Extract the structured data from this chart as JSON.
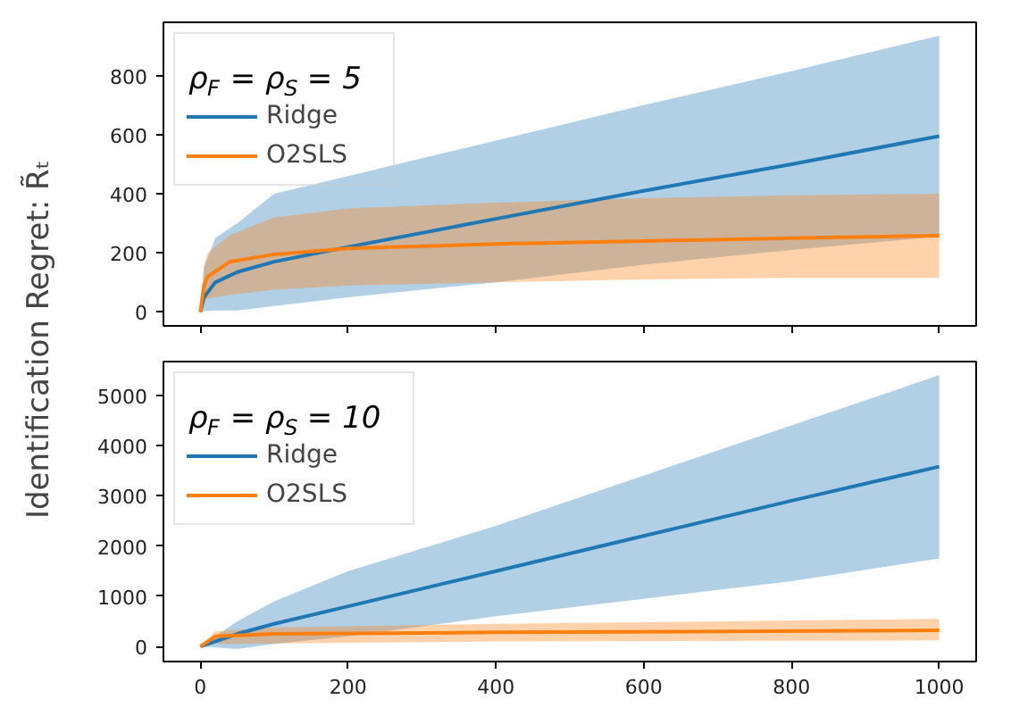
{
  "chart_data": [
    {
      "type": "line",
      "ylabel": "Identification Regret: R̃ₜ",
      "legend_title": "ρ$_{F}$ = ρ$_{S}$ = 5",
      "legend": "top left",
      "grid": false,
      "tick_labels": "y",
      "xlim": [
        -50,
        1050
      ],
      "ylim": [
        -47,
        980
      ],
      "xticks": [
        0,
        200,
        400,
        600,
        800,
        1000
      ],
      "yticks": [
        0,
        200,
        400,
        600,
        800
      ],
      "series": [
        {
          "name": "Ridge",
          "color": "#1f77b4",
          "x": [
            0,
            5,
            20,
            50,
            100,
            200,
            400,
            600,
            800,
            1000
          ],
          "values": [
            0,
            50,
            100,
            135,
            170,
            220,
            315,
            410,
            500,
            595
          ],
          "lower": [
            0,
            3,
            5,
            5,
            20,
            50,
            100,
            160,
            210,
            255
          ],
          "upper": [
            0,
            150,
            250,
            300,
            400,
            460,
            580,
            700,
            815,
            935
          ]
        },
        {
          "name": "O2SLS",
          "color": "#ff7f0e",
          "x": [
            0,
            5,
            10,
            40,
            100,
            200,
            400,
            600,
            800,
            1000
          ],
          "values": [
            0,
            90,
            120,
            170,
            195,
            215,
            230,
            240,
            250,
            258
          ],
          "lower": [
            0,
            40,
            45,
            58,
            75,
            90,
            100,
            110,
            115,
            115
          ],
          "upper": [
            0,
            160,
            200,
            260,
            320,
            350,
            370,
            385,
            395,
            400
          ]
        }
      ]
    },
    {
      "type": "line",
      "legend_title": "ρ$_{F}$ = ρ$_{S}$ = 10",
      "legend": "top left",
      "grid": false,
      "xlim": [
        -50,
        1050
      ],
      "ylim": [
        -300,
        5670
      ],
      "xticks": [
        0,
        200,
        400,
        600,
        800,
        1000
      ],
      "yticks": [
        0,
        1000,
        2000,
        3000,
        4000,
        5000
      ],
      "series": [
        {
          "name": "Ridge",
          "color": "#1f77b4",
          "x": [
            0,
            50,
            100,
            200,
            400,
            600,
            800,
            1000
          ],
          "values": [
            0,
            250,
            450,
            800,
            1500,
            2200,
            2900,
            3580
          ],
          "lower": [
            0,
            -50,
            50,
            200,
            600,
            950,
            1300,
            1750
          ],
          "upper": [
            0,
            500,
            900,
            1500,
            2400,
            3400,
            4400,
            5400
          ]
        },
        {
          "name": "O2SLS",
          "color": "#ff7f0e",
          "x": [
            0,
            20,
            100,
            400,
            1000
          ],
          "values": [
            0,
            200,
            250,
            280,
            320
          ],
          "lower": [
            0,
            50,
            60,
            100,
            120
          ],
          "upper": [
            0,
            300,
            380,
            450,
            550
          ]
        }
      ]
    }
  ]
}
